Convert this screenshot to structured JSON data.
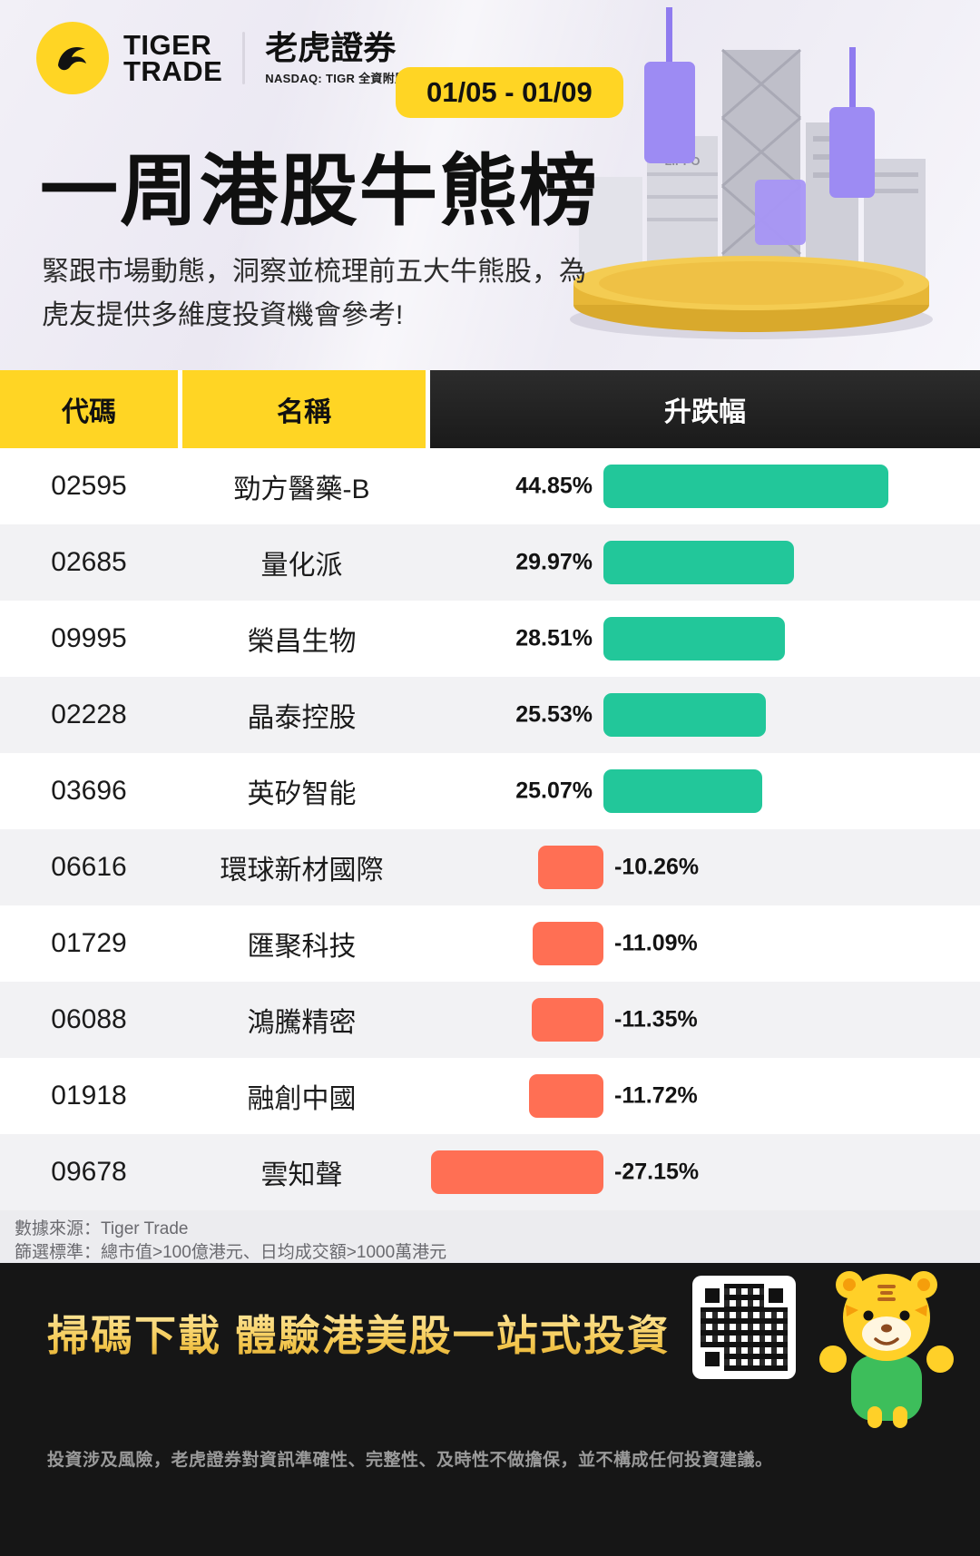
{
  "brand": {
    "logo_line1": "TIGER",
    "logo_line2": "TRADE",
    "name_cn": "老虎證券",
    "subtitle": "NASDAQ: TIGR 全資附屬機構"
  },
  "header": {
    "date_range": "01/05 - 01/09",
    "title": "一周港股牛熊榜",
    "subtitle_line1": "緊跟市場動態，洞察並梳理前五大牛熊股，為",
    "subtitle_line2": "虎友提供多維度投資機會參考!",
    "city_label": "LIPPO"
  },
  "table": {
    "col_code": "代碼",
    "col_name": "名稱",
    "col_change": "升跌幅",
    "rows": [
      {
        "code": "02595",
        "name": "勁方醫藥-B",
        "change": "44.85%",
        "value": 44.85,
        "direction": "up"
      },
      {
        "code": "02685",
        "name": "量化派",
        "change": "29.97%",
        "value": 29.97,
        "direction": "up"
      },
      {
        "code": "09995",
        "name": "榮昌生物",
        "change": "28.51%",
        "value": 28.51,
        "direction": "up"
      },
      {
        "code": "02228",
        "name": "晶泰控股",
        "change": "25.53%",
        "value": 25.53,
        "direction": "up"
      },
      {
        "code": "03696",
        "name": "英矽智能",
        "change": "25.07%",
        "value": 25.07,
        "direction": "up"
      },
      {
        "code": "06616",
        "name": "環球新材國際",
        "change": "-10.26%",
        "value": -10.26,
        "direction": "down"
      },
      {
        "code": "01729",
        "name": "匯聚科技",
        "change": "-11.09%",
        "value": -11.09,
        "direction": "down"
      },
      {
        "code": "06088",
        "name": "鴻騰精密",
        "change": "-11.35%",
        "value": -11.35,
        "direction": "down"
      },
      {
        "code": "01918",
        "name": "融創中國",
        "change": "-11.72%",
        "value": -11.72,
        "direction": "down"
      },
      {
        "code": "09678",
        "name": "雲知聲",
        "change": "-27.15%",
        "value": -27.15,
        "direction": "down"
      }
    ]
  },
  "notes": {
    "source": "數據來源：Tiger Trade",
    "criteria": "篩選標準：總市值>100億港元、日均成交額>1000萬港元"
  },
  "footer": {
    "cta": "掃碼下載 體驗港美股一站式投資",
    "disclaimer": "投資涉及風險，老虎證券對資訊準確性、完整性、及時性不做擔保，並不構成任何投資建議。"
  },
  "colors": {
    "brand_yellow": "#FFD524",
    "up_green": "#22C79A",
    "down_red": "#FF6F54",
    "header_dark": "#1F1F1F"
  },
  "chart_data": {
    "type": "bar",
    "orientation": "horizontal",
    "title": "一周港股牛熊榜 (01/05 - 01/09)",
    "categories": [
      "02595 勁方醫藥-B",
      "02685 量化派",
      "09995 榮昌生物",
      "02228 晶泰控股",
      "03696 英矽智能",
      "06616 環球新材國際",
      "01729 匯聚科技",
      "06088 鴻騰精密",
      "01918 融創中國",
      "09678 雲知聲"
    ],
    "values": [
      44.85,
      29.97,
      28.51,
      25.53,
      25.07,
      -10.26,
      -11.09,
      -11.35,
      -11.72,
      -27.15
    ],
    "unit": "%",
    "xlabel": "升跌幅",
    "ylabel": "",
    "xlim": [
      -30,
      50
    ],
    "legend": false,
    "grid": false,
    "positive_color": "#22C79A",
    "negative_color": "#FF6F54"
  }
}
